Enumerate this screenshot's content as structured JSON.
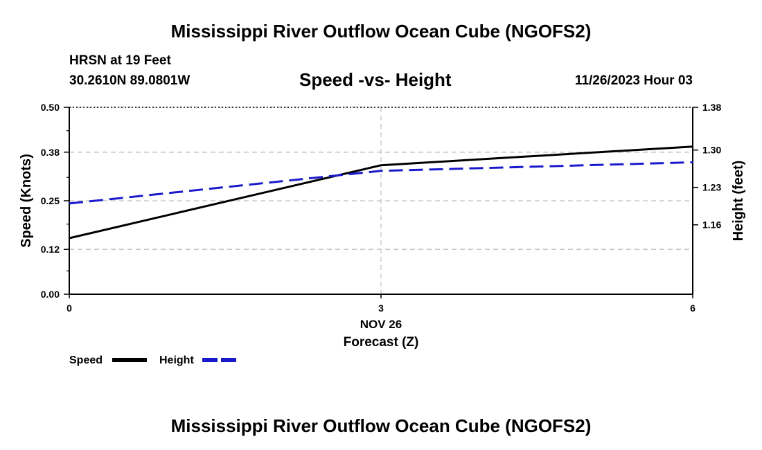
{
  "header": {
    "title": "Mississippi River Outflow Ocean Cube (NGOFS2)",
    "station": "HRSN at 19 Feet",
    "coords": "30.2610N  89.0801W",
    "subtitle": "Speed -vs- Height",
    "datetime": "11/26/2023 Hour 03"
  },
  "footer": {
    "title": "Mississippi River Outflow Ocean Cube (NGOFS2)"
  },
  "colors": {
    "speed": "#000000",
    "height": "#1a1acd",
    "grid": "#c8c8c8"
  },
  "chart_data": {
    "type": "line",
    "title": "Speed -vs- Height",
    "xlabel": "Forecast (Z)",
    "xdate_label": "NOV 26",
    "ylabel_left": "Speed (Knots)",
    "ylabel_right": "Height (feet)",
    "x": [
      0,
      3,
      6
    ],
    "xlim": [
      0,
      6
    ],
    "x_ticks": [
      "0",
      "3",
      "6"
    ],
    "ylim_left": [
      0.0,
      0.5
    ],
    "y_ticks_left": [
      "0.00",
      "0.12",
      "0.25",
      "0.38",
      "0.50"
    ],
    "ylim_right": [
      1.03,
      1.38
    ],
    "y_ticks_right": [
      "1.16",
      "1.23",
      "1.30",
      "1.38"
    ],
    "grid": true,
    "legend_position": "bottom-left",
    "series": [
      {
        "name": "Speed",
        "axis": "left",
        "style": "solid",
        "values": [
          0.15,
          0.345,
          0.395
        ]
      },
      {
        "name": "Height",
        "axis": "right",
        "style": "dashed",
        "values": [
          1.2,
          1.261,
          1.277
        ]
      }
    ]
  }
}
